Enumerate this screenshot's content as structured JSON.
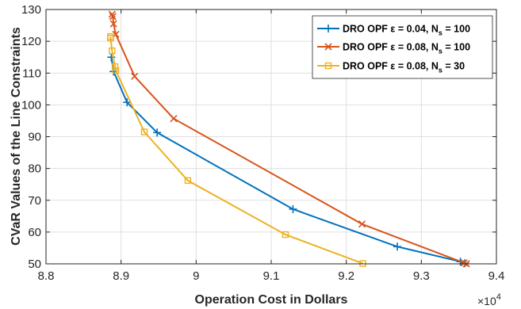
{
  "chart_data": {
    "type": "line",
    "xlabel": "Operation Cost in Dollars",
    "ylabel": "CVaR Values of the Line Constraints",
    "x_multiplier_base": "×10",
    "x_multiplier_exp": "4",
    "xlim": [
      8.8,
      9.4
    ],
    "ylim": [
      50,
      130
    ],
    "xticks": [
      8.8,
      8.9,
      9.0,
      9.1,
      9.2,
      9.3,
      9.4
    ],
    "xtick_labels": [
      "8.8",
      "8.9",
      "9",
      "9.1",
      "9.2",
      "9.3",
      "9.4"
    ],
    "yticks": [
      50,
      60,
      70,
      80,
      90,
      100,
      110,
      120,
      130
    ],
    "ytick_labels": [
      "50",
      "60",
      "70",
      "80",
      "90",
      "100",
      "110",
      "120",
      "130"
    ],
    "grid": true,
    "legend_position": "top-right",
    "series": [
      {
        "name_main": "DRO OPF ε = 0.04, N",
        "name_sub": "s",
        "name_tail": " = 100",
        "color": "#0072BD",
        "marker": "plus",
        "points": [
          [
            8.887,
            115.0
          ],
          [
            8.89,
            110.5
          ],
          [
            8.908,
            100.8
          ],
          [
            8.948,
            91.3
          ],
          [
            9.129,
            67.2
          ],
          [
            9.268,
            55.4
          ],
          [
            9.352,
            50.7
          ],
          [
            9.358,
            50.2
          ]
        ]
      },
      {
        "name_main": "DRO OPF ε = 0.08, N",
        "name_sub": "s",
        "name_tail": " = 100",
        "color": "#D95319",
        "marker": "x",
        "points": [
          [
            8.888,
            128.5
          ],
          [
            8.889,
            127.8
          ],
          [
            8.89,
            125.5
          ],
          [
            8.893,
            122.2
          ],
          [
            8.918,
            109.0
          ],
          [
            8.97,
            95.7
          ],
          [
            9.221,
            62.5
          ],
          [
            9.357,
            50.3
          ],
          [
            9.36,
            50.0
          ]
        ]
      },
      {
        "name_main": "DRO OPF ε = 0.08, N",
        "name_sub": "s",
        "name_tail": " = 30",
        "color": "#EDB120",
        "marker": "square",
        "points": [
          [
            8.886,
            121.5
          ],
          [
            8.886,
            121.0
          ],
          [
            8.888,
            117.0
          ],
          [
            8.892,
            112.0
          ],
          [
            8.893,
            110.8
          ],
          [
            8.931,
            91.5
          ],
          [
            8.989,
            76.2
          ],
          [
            9.119,
            59.2
          ],
          [
            9.222,
            50.1
          ]
        ]
      }
    ]
  }
}
